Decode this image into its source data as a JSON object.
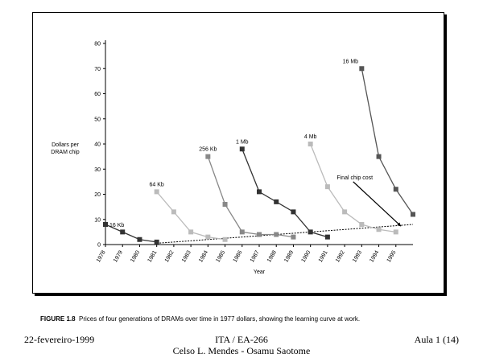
{
  "caption": {
    "label": "FIGURE 1.8",
    "text": "Prices of four generations of DRAMs over time in 1977 dollars, showing the learning curve at work."
  },
  "footer": {
    "date": "22-fevereiro-1999",
    "center_line1": "ITA / EA-266",
    "center_line2": "Celso L. Mendes - Osamu Saotome",
    "page": "Aula 1 (14)"
  },
  "chart_data": {
    "type": "line",
    "title": "",
    "xlabel": "Year",
    "ylabel_lines": [
      "Dollars per",
      "DRAM chip"
    ],
    "x_ticks": [
      "1978",
      "1979",
      "1980",
      "1981",
      "1982",
      "1983",
      "1984",
      "1985",
      "1986",
      "1987",
      "1988",
      "1989",
      "1990",
      "1991",
      "1992",
      "1993",
      "1994",
      "1995"
    ],
    "xlim": [
      1978,
      1996
    ],
    "ylim": [
      0,
      80
    ],
    "y_ticks": [
      0,
      10,
      20,
      30,
      40,
      50,
      60,
      70,
      80
    ],
    "grid": false,
    "legend": "none",
    "series": [
      {
        "name": "16 Kb",
        "color": "#333333",
        "x": [
          1978,
          1979,
          1980,
          1981
        ],
        "y": [
          8,
          5,
          2,
          1
        ]
      },
      {
        "name": "64 Kb",
        "color": "#bbbbbb",
        "x": [
          1981,
          1982,
          1983,
          1984,
          1985
        ],
        "y": [
          21,
          13,
          5,
          3,
          2
        ]
      },
      {
        "name": "256 Kb",
        "color": "#888888",
        "x": [
          1984,
          1985,
          1986,
          1987,
          1988,
          1989
        ],
        "y": [
          35,
          16,
          5,
          4,
          4,
          3
        ]
      },
      {
        "name": "1 Mb",
        "color": "#333333",
        "x": [
          1986,
          1987,
          1988,
          1989,
          1990,
          1991
        ],
        "y": [
          38,
          21,
          17,
          13,
          5,
          3
        ]
      },
      {
        "name": "4 Mb",
        "color": "#bbbbbb",
        "x": [
          1990,
          1991,
          1992,
          1993,
          1994,
          1995
        ],
        "y": [
          40,
          23,
          13,
          8,
          6,
          5
        ]
      },
      {
        "name": "16 Mb",
        "color": "#555555",
        "x": [
          1993,
          1994,
          1995,
          1996
        ],
        "y": [
          70,
          35,
          22,
          12
        ]
      }
    ],
    "trend": {
      "label": "Final chip cost",
      "x": [
        1981,
        1996
      ],
      "y": [
        0.5,
        8
      ]
    },
    "annotation_arrow": {
      "from": [
        1992.5,
        25
      ],
      "to": [
        1995.3,
        7.3
      ]
    }
  }
}
